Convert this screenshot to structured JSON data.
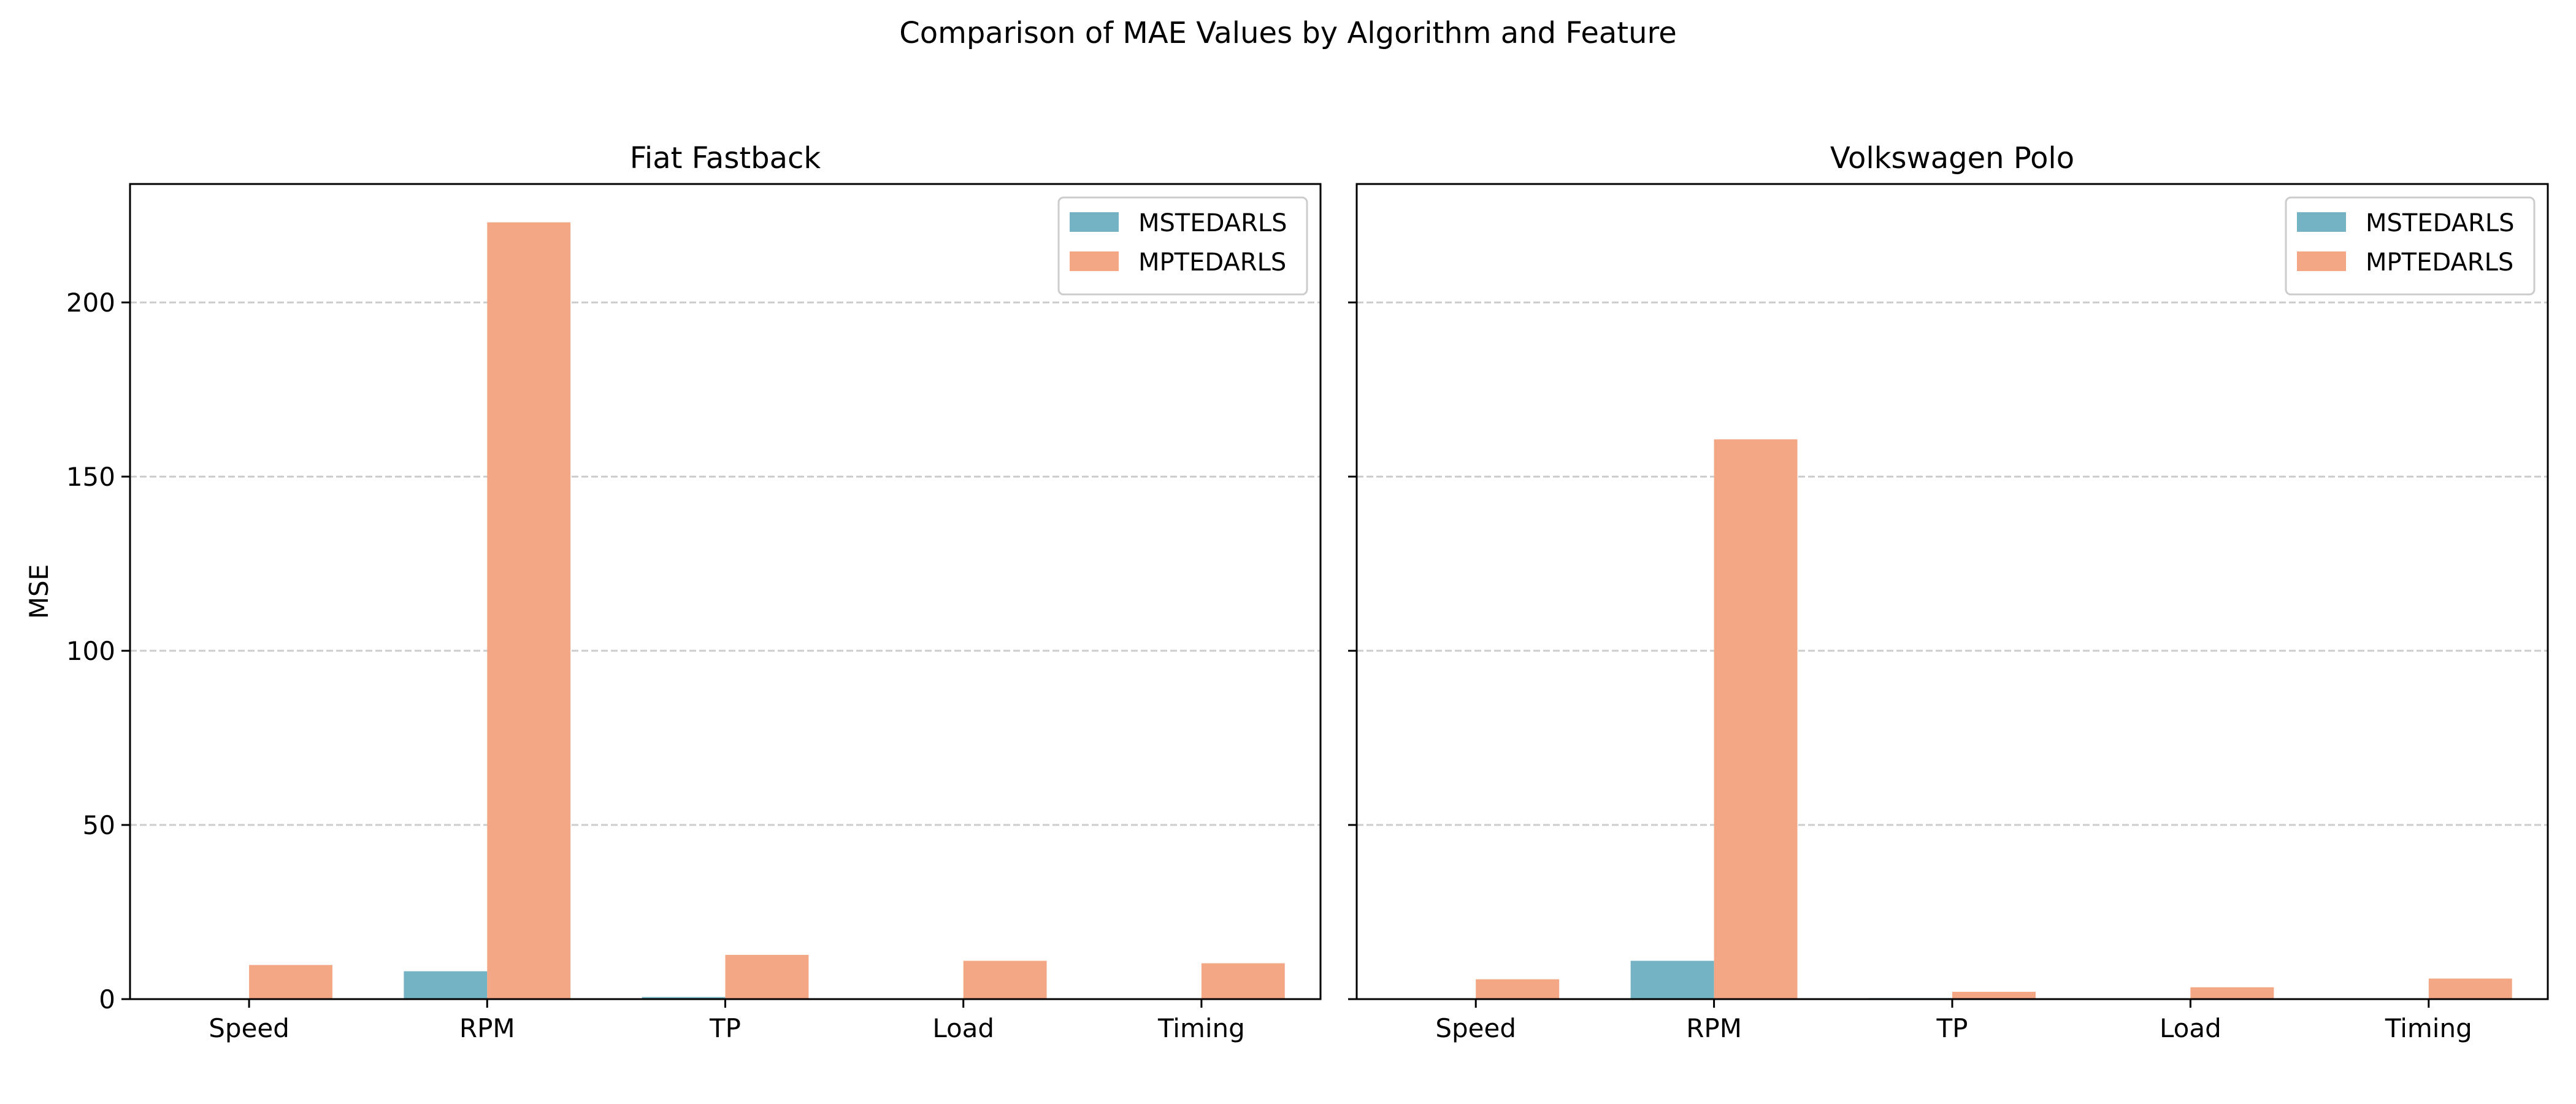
{
  "figure": {
    "suptitle": "Comparison of MAE Values by Algorithm and Feature"
  },
  "chart_data": [
    {
      "type": "bar",
      "title": "Fiat Fastback",
      "xlabel": "",
      "ylabel": "MSE",
      "categories": [
        "Speed",
        "RPM",
        "TP",
        "Load",
        "Timing"
      ],
      "ylim": [
        0,
        234
      ],
      "yticks": [
        0,
        50,
        100,
        150,
        200
      ],
      "grid": "y dashed",
      "legend": "top-right",
      "series": [
        {
          "name": "MSTEDARLS",
          "color": "#74b3c4",
          "values": [
            0.1,
            8.0,
            0.6,
            0.1,
            0.1
          ]
        },
        {
          "name": "MPTEDARLS",
          "color": "#f4a784",
          "values": [
            9.8,
            223.0,
            12.7,
            11.0,
            10.3
          ]
        }
      ]
    },
    {
      "type": "bar",
      "title": "Volkswagen Polo",
      "xlabel": "",
      "ylabel": "",
      "categories": [
        "Speed",
        "RPM",
        "TP",
        "Load",
        "Timing"
      ],
      "ylim": [
        0,
        234
      ],
      "yticks": [
        0,
        50,
        100,
        150,
        200
      ],
      "grid": "y dashed",
      "legend": "top-right",
      "series": [
        {
          "name": "MSTEDARLS",
          "color": "#74b3c4",
          "values": [
            0.1,
            11.0,
            0.3,
            0.1,
            0.1
          ]
        },
        {
          "name": "MPTEDARLS",
          "color": "#f4a784",
          "values": [
            5.7,
            160.7,
            2.1,
            3.4,
            5.9
          ]
        }
      ]
    }
  ]
}
